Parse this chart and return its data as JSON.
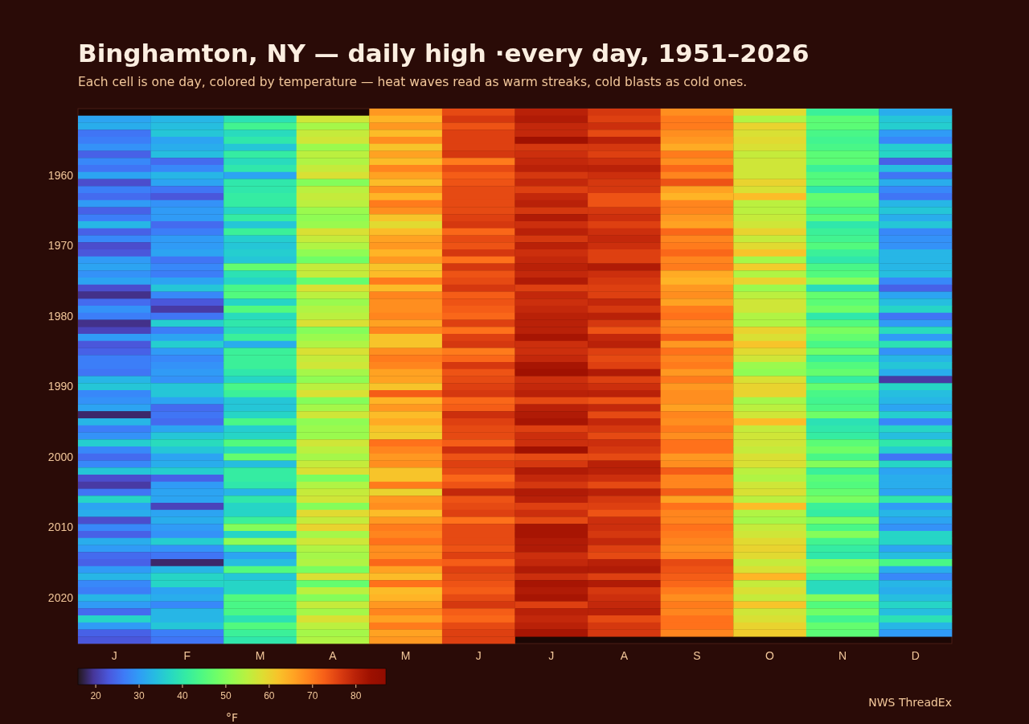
{
  "chart_data": {
    "type": "heatmap",
    "title": "Binghamton, NY — daily high ·every day, 1951–2026",
    "subtitle": "Each cell is one day, colored by temperature — heat waves read as warm streaks, cold blasts as cold ones.",
    "categories": [
      "J",
      "F",
      "M",
      "A",
      "M",
      "J",
      "J",
      "A",
      "S",
      "O",
      "N",
      "D"
    ],
    "y_categories": [
      null,
      null,
      null,
      null,
      null,
      null,
      null,
      null,
      null,
      "1960",
      null,
      null,
      null,
      null,
      null,
      null,
      null,
      null,
      null,
      "1970",
      null,
      null,
      null,
      null,
      null,
      null,
      null,
      null,
      null,
      "1980",
      null,
      null,
      null,
      null,
      null,
      null,
      null,
      null,
      null,
      "1990",
      null,
      null,
      null,
      null,
      null,
      null,
      null,
      null,
      null,
      "2000",
      null,
      null,
      null,
      null,
      null,
      null,
      null,
      null,
      null,
      "2010",
      null,
      null,
      null,
      null,
      null,
      null,
      null,
      null,
      null,
      "2020",
      null,
      null,
      null,
      null,
      null,
      null
    ],
    "cells": [
      [
        null,
        null,
        null,
        null,
        67,
        75,
        80,
        77,
        68,
        59,
        42,
        32
      ],
      [
        31,
        33,
        39,
        57,
        64,
        77,
        81,
        76,
        70,
        54,
        46,
        35
      ],
      [
        32,
        34,
        43,
        53,
        67,
        74,
        79,
        78,
        70,
        60,
        46,
        36
      ],
      [
        26,
        35,
        38,
        56,
        63,
        76,
        79,
        75,
        68,
        58,
        44,
        30
      ],
      [
        27,
        31,
        40,
        57,
        68,
        76,
        83,
        80,
        67,
        59,
        43,
        28
      ],
      [
        29,
        32,
        35,
        52,
        62,
        76,
        77,
        77,
        65,
        58,
        44,
        36
      ],
      [
        24,
        34,
        41,
        55,
        66,
        77,
        78,
        76,
        70,
        56,
        46,
        37
      ],
      [
        28,
        25,
        38,
        54,
        63,
        70,
        79,
        78,
        68,
        57,
        46,
        24
      ],
      [
        26,
        28,
        40,
        56,
        69,
        75,
        80,
        80,
        72,
        57,
        42,
        34
      ],
      [
        31,
        33,
        31,
        58,
        66,
        73,
        77,
        78,
        69,
        57,
        45,
        26
      ],
      [
        22,
        31,
        40,
        50,
        63,
        74,
        79,
        77,
        74,
        60,
        45,
        32
      ],
      [
        27,
        26,
        40,
        55,
        68,
        75,
        76,
        77,
        66,
        58,
        40,
        28
      ],
      [
        25,
        23,
        41,
        56,
        64,
        75,
        79,
        74,
        64,
        63,
        47,
        26
      ],
      [
        30,
        29,
        41,
        55,
        70,
        75,
        80,
        74,
        69,
        55,
        46,
        33
      ],
      [
        24,
        30,
        37,
        52,
        68,
        75,
        77,
        77,
        69,
        55,
        43,
        35
      ],
      [
        27,
        30,
        41,
        51,
        62,
        76,
        81,
        78,
        67,
        56,
        46,
        32
      ],
      [
        33,
        25,
        35,
        52,
        59,
        77,
        78,
        76,
        66,
        57,
        40,
        35
      ],
      [
        24,
        27,
        42,
        58,
        63,
        72,
        80,
        78,
        72,
        60,
        42,
        28
      ],
      [
        28,
        30,
        36,
        56,
        66,
        75,
        77,
        79,
        69,
        56,
        43,
        29
      ],
      [
        22,
        30,
        35,
        54,
        67,
        74,
        80,
        78,
        70,
        59,
        45,
        29
      ],
      [
        23,
        31,
        36,
        51,
        64,
        77,
        78,
        76,
        72,
        62,
        42,
        33
      ],
      [
        30,
        26,
        35,
        48,
        67,
        71,
        79,
        76,
        69,
        53,
        40,
        33
      ],
      [
        31,
        28,
        47,
        56,
        62,
        77,
        80,
        81,
        70,
        61,
        44,
        33
      ],
      [
        29,
        27,
        39,
        56,
        63,
        74,
        79,
        78,
        65,
        54,
        45,
        34
      ],
      [
        31,
        31,
        37,
        47,
        70,
        75,
        81,
        77,
        64,
        60,
        50,
        28
      ],
      [
        22,
        35,
        44,
        58,
        63,
        77,
        76,
        76,
        67,
        52,
        38,
        24
      ],
      [
        19,
        28,
        45,
        55,
        69,
        73,
        79,
        76,
        68,
        55,
        47,
        31
      ],
      [
        25,
        23,
        37,
        52,
        68,
        74,
        78,
        79,
        66,
        57,
        46,
        34
      ],
      [
        29,
        20,
        45,
        54,
        68,
        73,
        79,
        77,
        70,
        57,
        48,
        37
      ],
      [
        27,
        26,
        38,
        55,
        69,
        72,
        80,
        80,
        71,
        54,
        40,
        26
      ],
      [
        19,
        36,
        40,
        58,
        66,
        76,
        80,
        77,
        68,
        54,
        45,
        30
      ],
      [
        21,
        27,
        38,
        50,
        69,
        71,
        80,
        74,
        69,
        60,
        49,
        38
      ],
      [
        30,
        31,
        42,
        52,
        62,
        76,
        82,
        79,
        73,
        58,
        47,
        30
      ],
      [
        23,
        36,
        32,
        54,
        62,
        77,
        78,
        80,
        67,
        62,
        44,
        39
      ],
      [
        24,
        30,
        42,
        58,
        68,
        70,
        78,
        76,
        71,
        59,
        48,
        29
      ],
      [
        27,
        28,
        42,
        56,
        70,
        72,
        79,
        75,
        69,
        57,
        42,
        33
      ],
      [
        27,
        29,
        42,
        57,
        69,
        77,
        82,
        76,
        70,
        52,
        45,
        35
      ],
      [
        26,
        30,
        40,
        53,
        66,
        74,
        83,
        81,
        67,
        51,
        47,
        32
      ],
      [
        33,
        29,
        37,
        51,
        66,
        75,
        78,
        76,
        70,
        58,
        41,
        20
      ],
      [
        35,
        35,
        44,
        55,
        62,
        76,
        79,
        78,
        67,
        60,
        47,
        37
      ],
      [
        28,
        35,
        42,
        58,
        73,
        77,
        80,
        80,
        68,
        60,
        44,
        34
      ],
      [
        29,
        31,
        35,
        50,
        64,
        72,
        75,
        74,
        68,
        53,
        43,
        33
      ],
      [
        31,
        25,
        35,
        53,
        67,
        73,
        80,
        79,
        66,
        55,
        44,
        31
      ],
      [
        18,
        26,
        37,
        57,
        63,
        78,
        81,
        75,
        69,
        57,
        48,
        36
      ],
      [
        33,
        25,
        44,
        51,
        65,
        76,
        82,
        79,
        68,
        63,
        39,
        28
      ],
      [
        27,
        31,
        36,
        52,
        62,
        75,
        76,
        77,
        70,
        56,
        40,
        37
      ],
      [
        29,
        35,
        37,
        52,
        61,
        75,
        78,
        75,
        68,
        57,
        41,
        34
      ],
      [
        36,
        38,
        45,
        57,
        71,
        73,
        78,
        78,
        71,
        57,
        46,
        40
      ],
      [
        28,
        35,
        38,
        55,
        69,
        78,
        83,
        77,
        71,
        56,
        48,
        36
      ],
      [
        25,
        31,
        47,
        53,
        67,
        74,
        75,
        75,
        67,
        58,
        44,
        26
      ],
      [
        28,
        32,
        34,
        56,
        68,
        76,
        77,
        80,
        68,
        58,
        50,
        37
      ],
      [
        35,
        36,
        41,
        58,
        62,
        75,
        81,
        80,
        73,
        55,
        42,
        31
      ],
      [
        22,
        24,
        41,
        49,
        62,
        72,
        79,
        78,
        69,
        54,
        46,
        32
      ],
      [
        20,
        30,
        40,
        54,
        70,
        74,
        77,
        75,
        69,
        57,
        45,
        32
      ],
      [
        26,
        31,
        33,
        56,
        60,
        79,
        81,
        80,
        73,
        58,
        47,
        31
      ],
      [
        37,
        31,
        40,
        57,
        67,
        74,
        80,
        77,
        66,
        55,
        49,
        40
      ],
      [
        31,
        21,
        37,
        50,
        68,
        75,
        76,
        76,
        71,
        63,
        42,
        30
      ],
      [
        32,
        31,
        37,
        59,
        63,
        76,
        78,
        74,
        69,
        54,
        41,
        33
      ],
      [
        22,
        32,
        42,
        56,
        67,
        71,
        75,
        78,
        69,
        53,
        49,
        31
      ],
      [
        28,
        30,
        50,
        60,
        70,
        75,
        82,
        78,
        71,
        56,
        44,
        29
      ],
      [
        24,
        29,
        37,
        53,
        69,
        75,
        82,
        77,
        70,
        57,
        50,
        37
      ],
      [
        32,
        36,
        51,
        57,
        71,
        75,
        81,
        79,
        69,
        59,
        43,
        37
      ],
      [
        30,
        29,
        38,
        54,
        68,
        74,
        81,
        76,
        68,
        60,
        41,
        31
      ],
      [
        25,
        26,
        31,
        53,
        68,
        76,
        78,
        75,
        69,
        59,
        40,
        34
      ],
      [
        24,
        18,
        34,
        54,
        72,
        73,
        79,
        80,
        75,
        56,
        50,
        44
      ],
      [
        30,
        33,
        45,
        49,
        66,
        76,
        81,
        81,
        74,
        58,
        48,
        32
      ],
      [
        33,
        37,
        35,
        58,
        63,
        75,
        78,
        76,
        73,
        64,
        44,
        28
      ],
      [
        28,
        37,
        37,
        47,
        71,
        74,
        82,
        81,
        72,
        56,
        38,
        33
      ],
      [
        27,
        31,
        37,
        55,
        63,
        73,
        81,
        77,
        70,
        58,
        38,
        32
      ],
      [
        33,
        32,
        45,
        50,
        64,
        75,
        82,
        78,
        68,
        56,
        50,
        34
      ],
      [
        30,
        28,
        44,
        56,
        67,
        77,
        76,
        79,
        70,
        62,
        45,
        37
      ],
      [
        25,
        33,
        44,
        53,
        69,
        73,
        80,
        80,
        69,
        57,
        48,
        34
      ],
      [
        37,
        33,
        39,
        58,
        66,
        72,
        79,
        75,
        71,
        58,
        43,
        39
      ],
      [
        30,
        35,
        45,
        55,
        70,
        75,
        80,
        77,
        71,
        60,
        47,
        33
      ],
      [
        24,
        27,
        42,
        53,
        66,
        76,
        82,
        77,
        69,
        61,
        46,
        30
      ],
      [
        23,
        26,
        40,
        54,
        67,
        76,
        null,
        null,
        null,
        null,
        null,
        null
      ]
    ],
    "clim": [
      16,
      87
    ],
    "cticks": [
      20,
      30,
      40,
      50,
      60,
      70,
      80
    ],
    "clabel": "°F",
    "annotations": [
      "NWS ThreadEx"
    ]
  }
}
